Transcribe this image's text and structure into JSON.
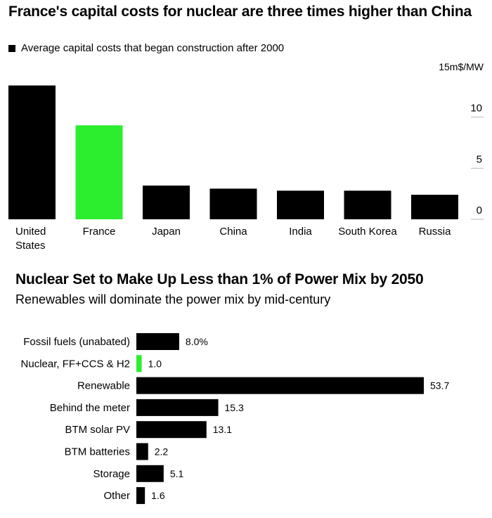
{
  "chart_data": [
    {
      "type": "bar",
      "title": "France's capital costs for nuclear are three times higher than China",
      "legend": [
        "Average capital costs that began construction after 2000"
      ],
      "unit_label": "15m$/MW",
      "categories": [
        "United States",
        "France",
        "Japan",
        "China",
        "India",
        "South Korea",
        "Russia"
      ],
      "values": [
        13.1,
        9.2,
        3.3,
        3.0,
        2.8,
        2.8,
        2.4
      ],
      "ylim": [
        0,
        15
      ],
      "yticks": [
        0,
        5,
        10
      ],
      "highlight_category": "France",
      "colors": {
        "default": "#000000",
        "highlight": "#2ded2f"
      }
    },
    {
      "type": "bar",
      "orientation": "horizontal",
      "title": "Nuclear Set to Make Up Less than 1% of Power Mix by 2050",
      "subtitle": "Renewables will dominate the power mix by mid-century",
      "categories": [
        "Fossil fuels (unabated)",
        "Nuclear, FF+CCS & H2",
        "Renewable",
        "Behind the meter",
        "BTM solar PV",
        "BTM batteries",
        "Storage",
        "Other"
      ],
      "values": [
        8.0,
        1.0,
        53.7,
        15.3,
        13.1,
        2.2,
        5.1,
        1.6
      ],
      "value_labels": [
        "8.0%",
        "1.0",
        "53.7",
        "15.3",
        "13.1",
        "2.2",
        "5.1",
        "1.6"
      ],
      "highlight_category": "Nuclear, FF+CCS & H2",
      "colors": {
        "default": "#000000",
        "highlight": "#2ded2f"
      }
    }
  ]
}
